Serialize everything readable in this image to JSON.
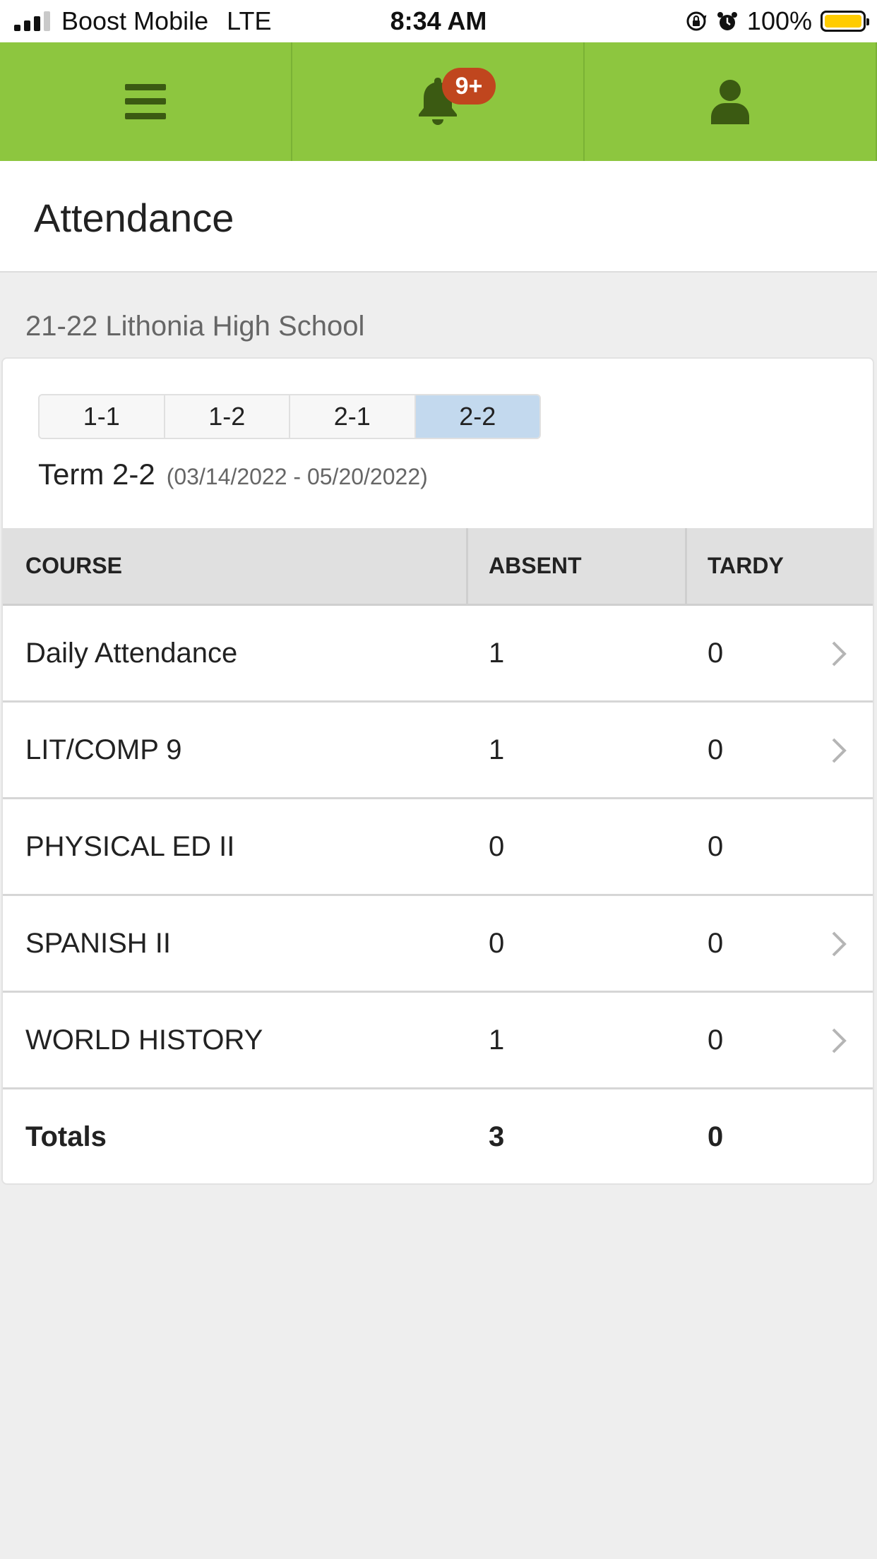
{
  "status_bar": {
    "carrier": "Boost Mobile",
    "network": "LTE",
    "time": "8:34 AM",
    "battery": "100%",
    "battery_color": "#ffcc00"
  },
  "nav": {
    "menu_icon": "menu-icon",
    "bell_icon": "bell-icon",
    "notification_count": "9+",
    "user_icon": "user-icon",
    "bar_color": "#8dc63f",
    "icon_color": "#3b5a12",
    "badge_color": "#c0461e"
  },
  "page": {
    "title": "Attendance",
    "school": "21-22 Lithonia High School"
  },
  "terms": {
    "tabs": [
      {
        "label": "1-1",
        "active": false
      },
      {
        "label": "1-2",
        "active": false
      },
      {
        "label": "2-1",
        "active": false
      },
      {
        "label": "2-2",
        "active": true
      }
    ],
    "current_label": "Term 2-2",
    "current_dates": "(03/14/2022 - 05/20/2022)",
    "active_color": "#c3d9ee"
  },
  "table": {
    "headers": {
      "course": "COURSE",
      "absent": "ABSENT",
      "tardy": "TARDY"
    },
    "rows": [
      {
        "course": "Daily Attendance",
        "absent": "1",
        "tardy": "0",
        "has_detail": true
      },
      {
        "course": "LIT/COMP 9",
        "absent": "1",
        "tardy": "0",
        "has_detail": true
      },
      {
        "course": "PHYSICAL ED II",
        "absent": "0",
        "tardy": "0",
        "has_detail": false
      },
      {
        "course": "SPANISH II",
        "absent": "0",
        "tardy": "0",
        "has_detail": true
      },
      {
        "course": "WORLD HISTORY",
        "absent": "1",
        "tardy": "0",
        "has_detail": true
      }
    ],
    "totals": {
      "label": "Totals",
      "absent": "3",
      "tardy": "0"
    }
  }
}
